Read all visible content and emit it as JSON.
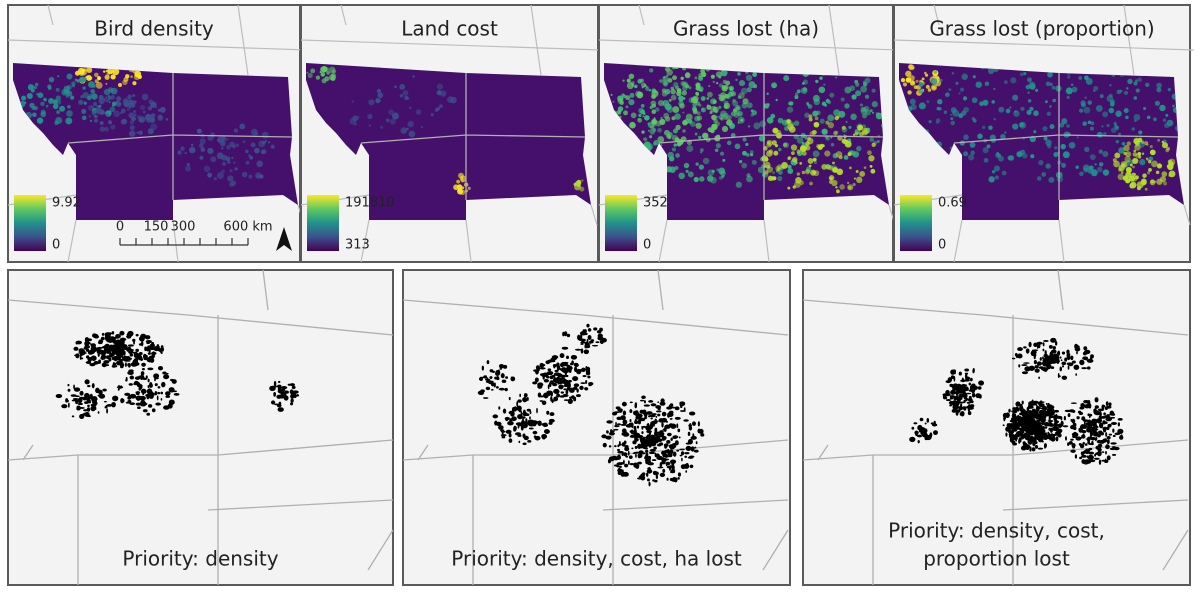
{
  "top_panels": [
    {
      "title": "Bird density",
      "legend": {
        "max": "9.92",
        "min": "0"
      }
    },
    {
      "title": "Land cost",
      "legend": {
        "max": "191810",
        "min": "313"
      }
    },
    {
      "title": "Grass lost (ha)",
      "legend": {
        "max": "352",
        "min": "0"
      }
    },
    {
      "title": "Grass lost (proportion)",
      "legend": {
        "max": "0.69",
        "min": "0"
      }
    }
  ],
  "scale_bar": {
    "labels": [
      "0",
      "150",
      "300",
      "600 km"
    ]
  },
  "bottom_panels": [
    {
      "label": [
        "Priority: density"
      ]
    },
    {
      "label": [
        "Priority: density, cost, ha lost"
      ]
    },
    {
      "label": [
        "Priority: density, cost,",
        "proportion lost"
      ]
    }
  ]
}
